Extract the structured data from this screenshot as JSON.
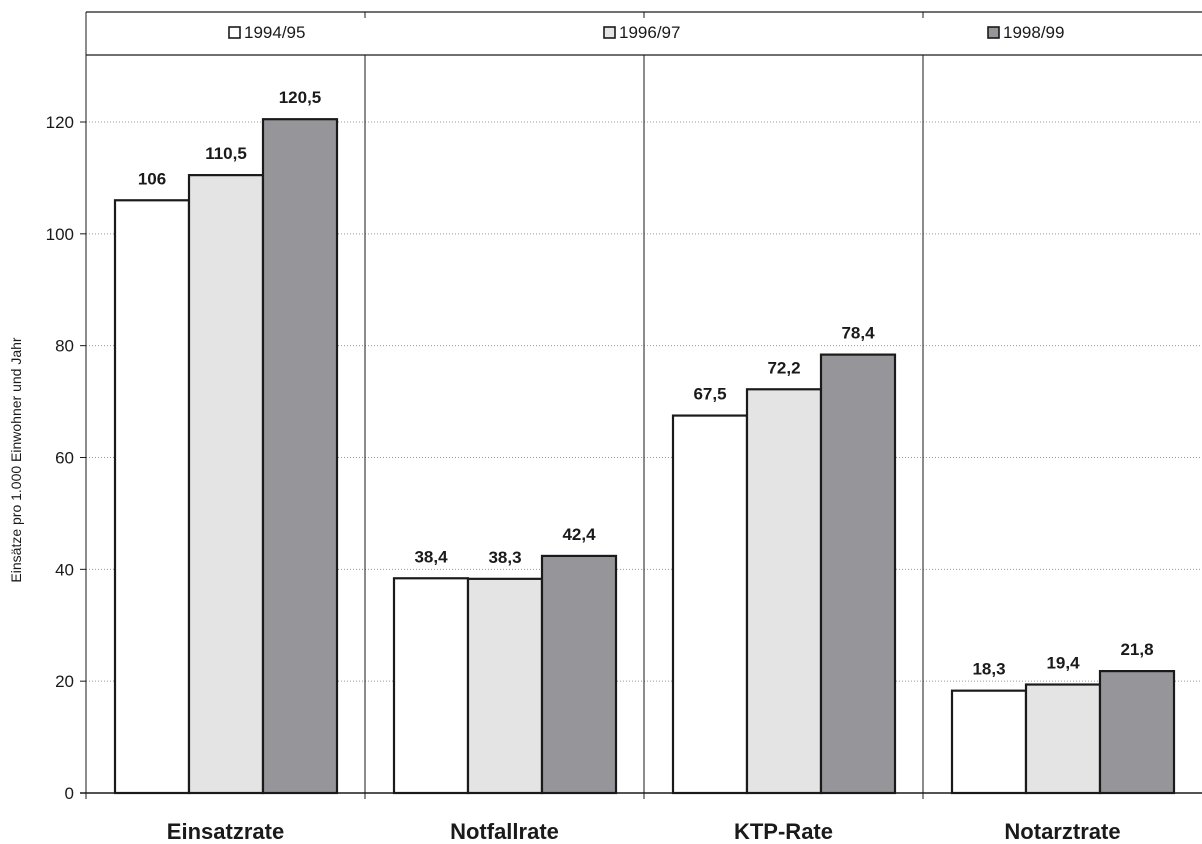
{
  "chart_data": {
    "type": "bar",
    "categories": [
      "Einsatzrate",
      "Notfallrate",
      "KTP-Rate",
      "Notarztrate"
    ],
    "series": [
      {
        "name": "1994/95",
        "values": [
          106,
          38.4,
          67.5,
          18.3
        ],
        "labels": [
          "106",
          "38,4",
          "67,5",
          "18,3"
        ],
        "color": "#ffffff"
      },
      {
        "name": "1996/97",
        "values": [
          110.5,
          38.3,
          72.2,
          19.4
        ],
        "labels": [
          "110,5",
          "38,3",
          "72,2",
          "19,4"
        ],
        "color": "#e4e4e4"
      },
      {
        "name": "1998/99",
        "values": [
          120.5,
          42.4,
          78.4,
          21.8
        ],
        "labels": [
          "120,5",
          "42,4",
          "78,4",
          "21,8"
        ],
        "color": "#96969a"
      }
    ],
    "ylabel": "Einsätze pro 1.000 Einwohner und Jahr",
    "ylim": [
      0,
      132
    ],
    "yticks": [
      0,
      20,
      40,
      60,
      80,
      100,
      120
    ],
    "grid": true,
    "legend_position": "top"
  }
}
